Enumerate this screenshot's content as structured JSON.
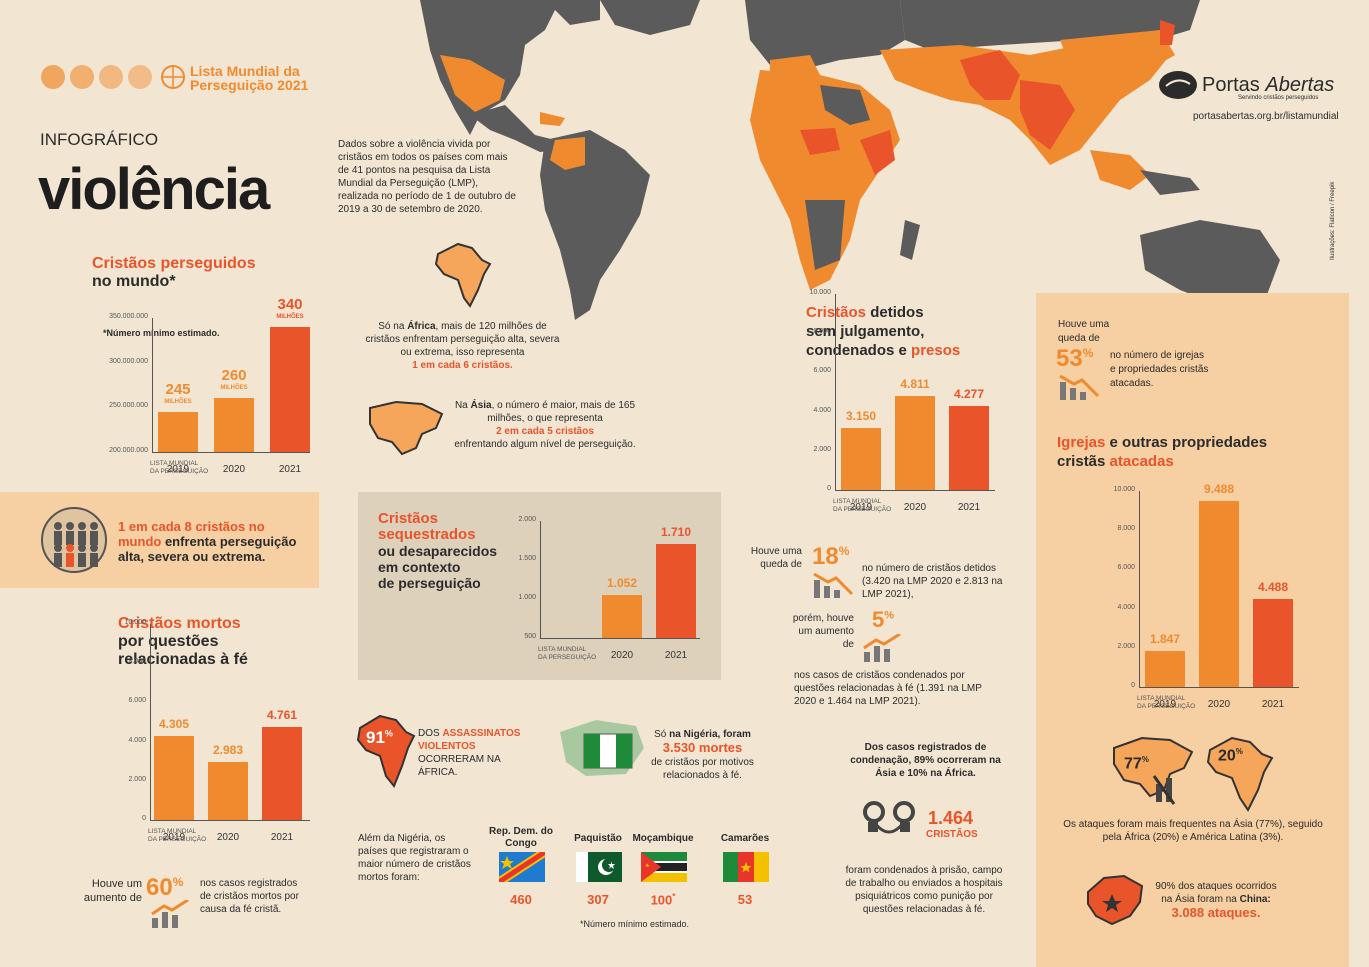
{
  "header": {
    "series": "Lista Mundial da Perseguição 2021",
    "series_l1": "Lista Mundial da",
    "series_l2": "Perseguição 2021",
    "kicker": "INFOGRÁFICO",
    "title": "violência",
    "intro": "Dados sobre a violência vivida por cristãos em todos os países com mais de 41 pontos na pesquisa da Lista Mundial da Perseguição (LMP), realizada no período de 1 de outubro de 2019 a 30 de setembro de 2020."
  },
  "brand": {
    "name_1": "Portas",
    "name_2": "Abertas",
    "tagline": "Servindo cristãos perseguidos",
    "url": "portasabertas.org.br/listamundial",
    "credit": "Ilustrações: Flaticon / Freepik"
  },
  "colors": {
    "bg": "#f2e6d3",
    "light_orange": "#f08a2e",
    "dark_orange": "#e9542a",
    "map_gray": "#5b5b5b",
    "panel": "#f6cfa3"
  },
  "africa_note": {
    "prefix": "Só na ",
    "region": "África",
    "text": ", mais de 120 milhões de cristãos enfrentam perseguição alta, severa ou extrema, isso representa",
    "highlight": "1 em cada 6 cristãos."
  },
  "asia_note": {
    "prefix": "Na ",
    "region": "Ásia",
    "text": ", o número é maior, mais de 165 milhões, o que representa",
    "highlight": "2 em cada 5 cristãos",
    "suffix": "enfrentando algum nível de perseguição."
  },
  "persecuted": {
    "title_1": "Cristãos perseguidos",
    "title_2": "no mundo*",
    "footnote": "*Número mínimo estimado.",
    "axis_label_1": "LISTA MUNDIAL",
    "axis_label_2": "DA PERSEGUIÇÃO",
    "chart_data": {
      "type": "bar",
      "categories": [
        "2019",
        "2020",
        "2021"
      ],
      "values": [
        245000000,
        260000000,
        340000000
      ],
      "value_labels": [
        "245",
        "260",
        "340"
      ],
      "unit_label": "MILHÕES",
      "yticks": [
        "350.000.000",
        "300.000.000",
        "250.000.000",
        "200.000.000"
      ],
      "ylim": [
        200000000,
        350000000
      ]
    }
  },
  "one_in_eight": {
    "highlight": "1 em cada 8 cristãos no mundo",
    "text": " enfrenta perseguição alta, severa ou extrema."
  },
  "killed": {
    "title_1": "Cristãos mortos",
    "title_2": "por questões",
    "title_3": "relacionadas à fé",
    "axis_label_1": "LISTA MUNDIAL",
    "axis_label_2": "DA PERSEGUIÇÃO",
    "chart_data": {
      "type": "bar",
      "categories": [
        "2019",
        "2020",
        "2021"
      ],
      "values": [
        4305,
        2983,
        4761
      ],
      "value_labels": [
        "4.305",
        "2.983",
        "4.761"
      ],
      "yticks": [
        "10.000",
        "8.000",
        "6.000",
        "4.000",
        "2.000",
        "0"
      ],
      "ylim": [
        0,
        10000
      ]
    },
    "increase_pre": "Houve um aumento de",
    "increase_pct": "60",
    "increase_post": "nos casos registrados de cristãos mortos por causa da fé cristã."
  },
  "kidnapped": {
    "title_1": "Cristãos",
    "title_2": "sequestrados",
    "title_3": "ou desaparecidos",
    "title_4": "em contexto",
    "title_5": "de perseguição",
    "axis_label_1": "LISTA MUNDIAL",
    "axis_label_2": "DA PERSEGUIÇÃO",
    "chart_data": {
      "type": "bar",
      "categories": [
        "2020",
        "2021"
      ],
      "values": [
        1052,
        1710
      ],
      "value_labels": [
        "1.052",
        "1.710"
      ],
      "yticks": [
        "2.000",
        "1.500",
        "1.000",
        "500"
      ],
      "ylim": [
        500,
        2000
      ]
    }
  },
  "africa_murders": {
    "pct": "91",
    "dos": "DOS",
    "highlight": "ASSASSINATOS VIOLENTOS",
    "text": "OCORRERAM NA ÁFRICA."
  },
  "nigeria": {
    "pre": "Só ",
    "highlight": "na Nigéria, foram",
    "number": "3.530 mortes",
    "text": "de cristãos por motivos relacionados à fé."
  },
  "countries": {
    "intro": "Além da Nigéria, os países que registraram o maior número de cristãos mortos foram:",
    "footnote": "*Número mínimo estimado.",
    "items": [
      {
        "name": "Rep. Dem. do Congo",
        "value": "460"
      },
      {
        "name": "Paquistão",
        "value": "307"
      },
      {
        "name": "Moçambique",
        "value": "100",
        "mark": "*"
      },
      {
        "name": "Camarões",
        "value": "53"
      }
    ]
  },
  "detained": {
    "title_1a": "Cristãos",
    "title_1b": " detidos",
    "title_2": "sem julgamento,",
    "title_3a": "condenados e ",
    "title_3b": "presos",
    "axis_label_1": "LISTA MUNDIAL",
    "axis_label_2": "DA PERSEGUIÇÃO",
    "chart_data": {
      "type": "bar",
      "categories": [
        "2019",
        "2020",
        "2021"
      ],
      "values": [
        3150,
        4811,
        4277
      ],
      "value_labels": [
        "3.150",
        "4.811",
        "4.277"
      ],
      "yticks": [
        "10.000",
        "8.000",
        "6.000",
        "4.000",
        "2.000",
        "0"
      ],
      "ylim": [
        0,
        10000
      ]
    },
    "drop_pre": "Houve uma queda de",
    "drop_pct": "18",
    "drop_post": "no número de cristãos detidos (3.420 na LMP 2020 e 2.813 na LMP 2021),",
    "inc_pre": "porém, houve um aumento de",
    "inc_pct": "5",
    "inc_post": "nos casos de cristãos condenados por questões relacionadas à fé (1.391 na LMP 2020 e 1.464 na LMP 2021).",
    "cases_note": "Dos casos registrados de condenação, 89% ocorreram na Ásia e 10% na África.",
    "count": "1.464",
    "count_label": "CRISTÃOS",
    "count_text": "foram condenados à prisão, campo de trabalho ou enviados a hospitais psiquiátricos como punição por questões relacionadas à fé."
  },
  "churches": {
    "drop_pre_1": "Houve uma",
    "drop_pre_2": "queda de",
    "drop_pct": "53",
    "drop_post": "no número de igrejas e propriedades cristãs atacadas.",
    "title_1a": "Igrejas",
    "title_1b": " e outras propriedades",
    "title_2a": "cristãs ",
    "title_2b": "atacadas",
    "axis_label_1": "LISTA MUNDIAL",
    "axis_label_2": "DA PERSEGUIÇÃO",
    "chart_data": {
      "type": "bar",
      "categories": [
        "2019",
        "2020",
        "2021"
      ],
      "values": [
        1847,
        9488,
        4488
      ],
      "value_labels": [
        "1.847",
        "9.488",
        "4.488"
      ],
      "yticks": [
        "10.000",
        "8.000",
        "6.000",
        "4.000",
        "2.000",
        "0"
      ],
      "ylim": [
        0,
        10000
      ]
    },
    "asia_pct": "77",
    "africa_pct": "20",
    "attacks_note": "Os ataques foram mais frequentes na Ásia (77%), seguido pela África (20%) e América Latina (3%).",
    "china_text": "90% dos ataques ocorridos na Ásia foram na",
    "china_name": "China:",
    "china_count": "3.088 ataques."
  },
  "pct_sign": "%"
}
